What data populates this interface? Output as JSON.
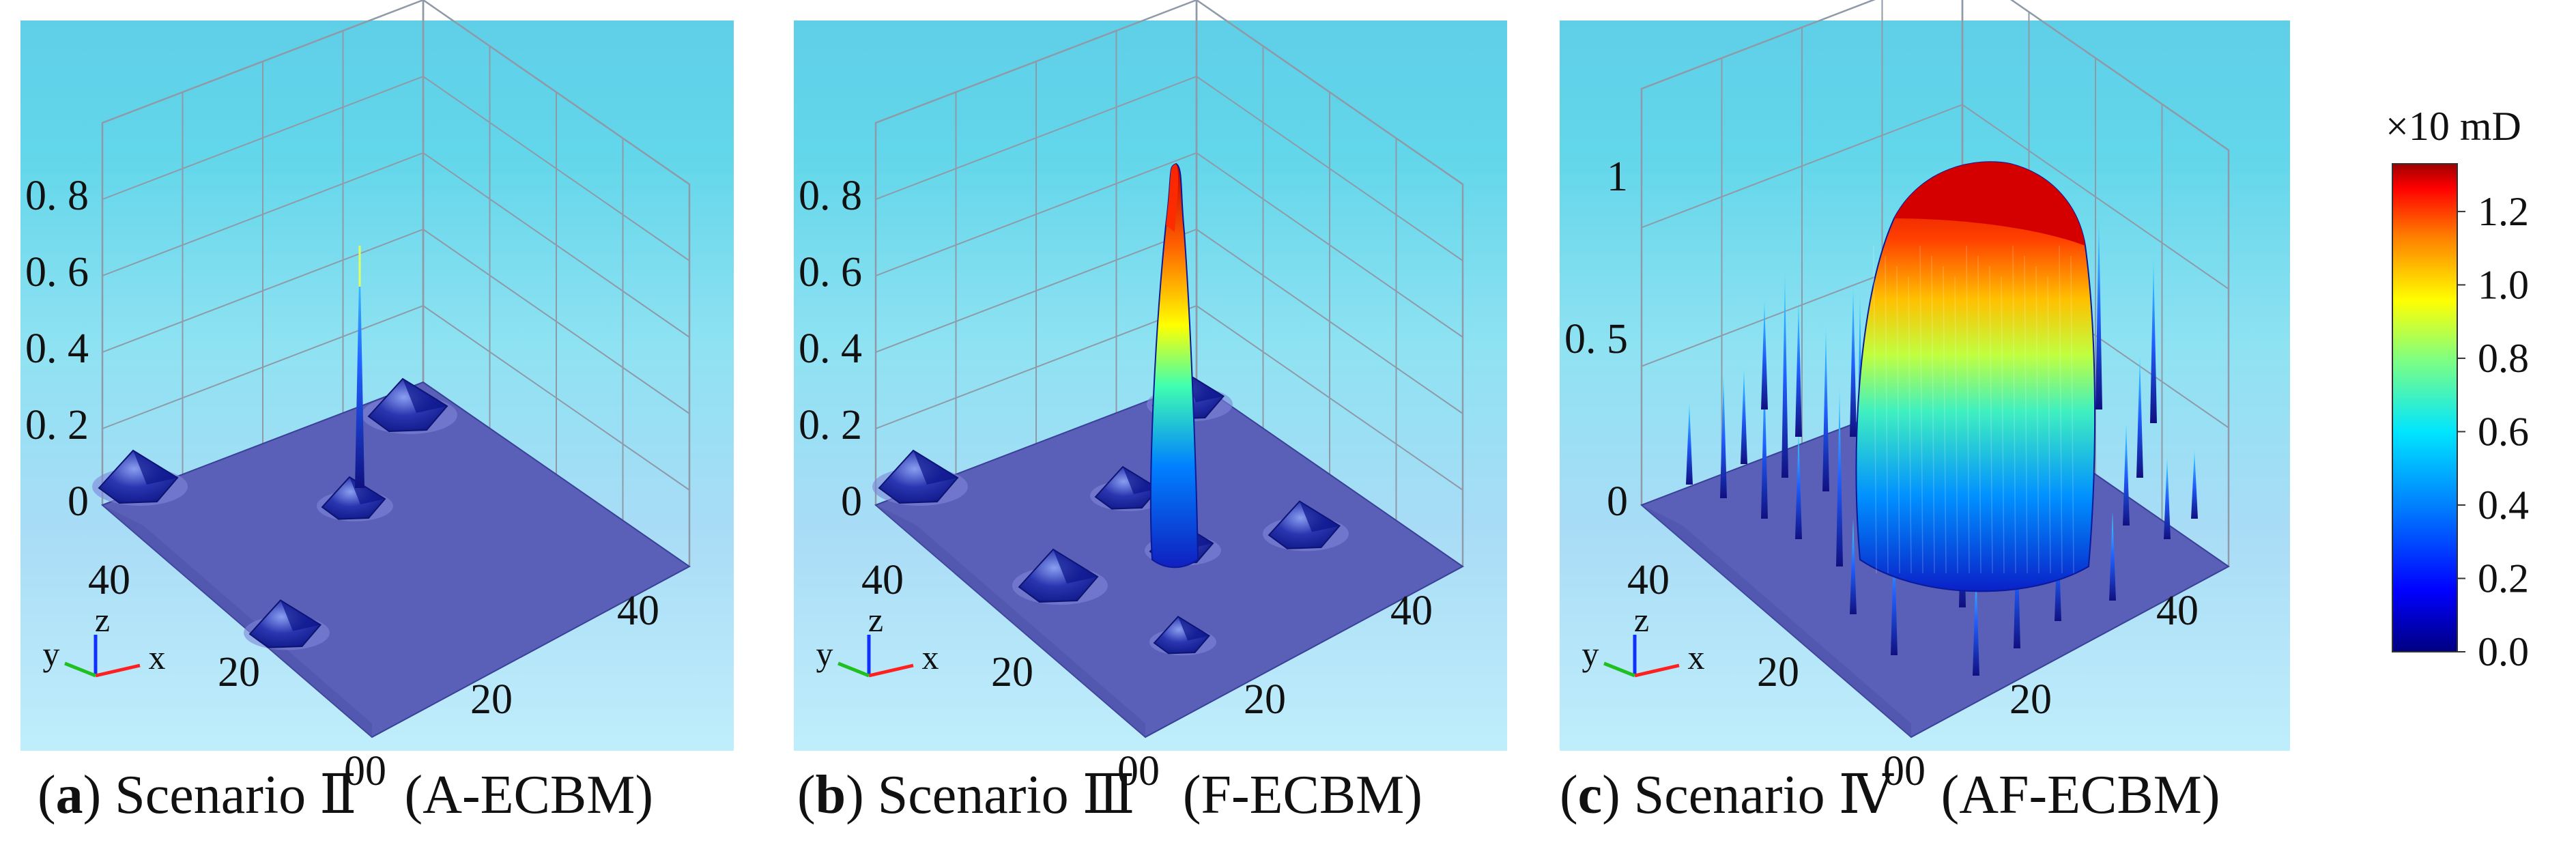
{
  "panels": [
    {
      "letter": "a",
      "caption_name": "Scenario Ⅱ",
      "caption_method": "(A-ECBM)",
      "z_ticks": [
        "0",
        "0. 2",
        "0. 4",
        "0. 6",
        "0. 8"
      ],
      "y_ticks": [
        "40",
        "20"
      ],
      "x_ticks": [
        "20",
        "40"
      ],
      "origin_label": "00"
    },
    {
      "letter": "b",
      "caption_name": "Scenario Ⅲ",
      "caption_method": "(F-ECBM)",
      "z_ticks": [
        "0",
        "0. 2",
        "0. 4",
        "0. 6",
        "0. 8"
      ],
      "y_ticks": [
        "40",
        "20"
      ],
      "x_ticks": [
        "20",
        "40"
      ],
      "origin_label": "00"
    },
    {
      "letter": "c",
      "caption_name": "Scenario Ⅳ",
      "caption_method": "(AF-ECBM)",
      "z_ticks": [
        "0",
        "0. 5",
        "1"
      ],
      "y_ticks": [
        "40",
        "20"
      ],
      "x_ticks": [
        "20",
        "40"
      ],
      "origin_label": "00"
    }
  ],
  "triad": {
    "x": "x",
    "y": "y",
    "z": "z"
  },
  "colorbar": {
    "unit": "×10 mD",
    "ticks": [
      "1.2",
      "1.0",
      "0.8",
      "0.6",
      "0.4",
      "0.2",
      "0.0"
    ],
    "colors": [
      "#000080",
      "#0000ff",
      "#0080ff",
      "#00ffff",
      "#80ff80",
      "#ffff00",
      "#ff8000",
      "#ff0000",
      "#800000"
    ]
  }
}
